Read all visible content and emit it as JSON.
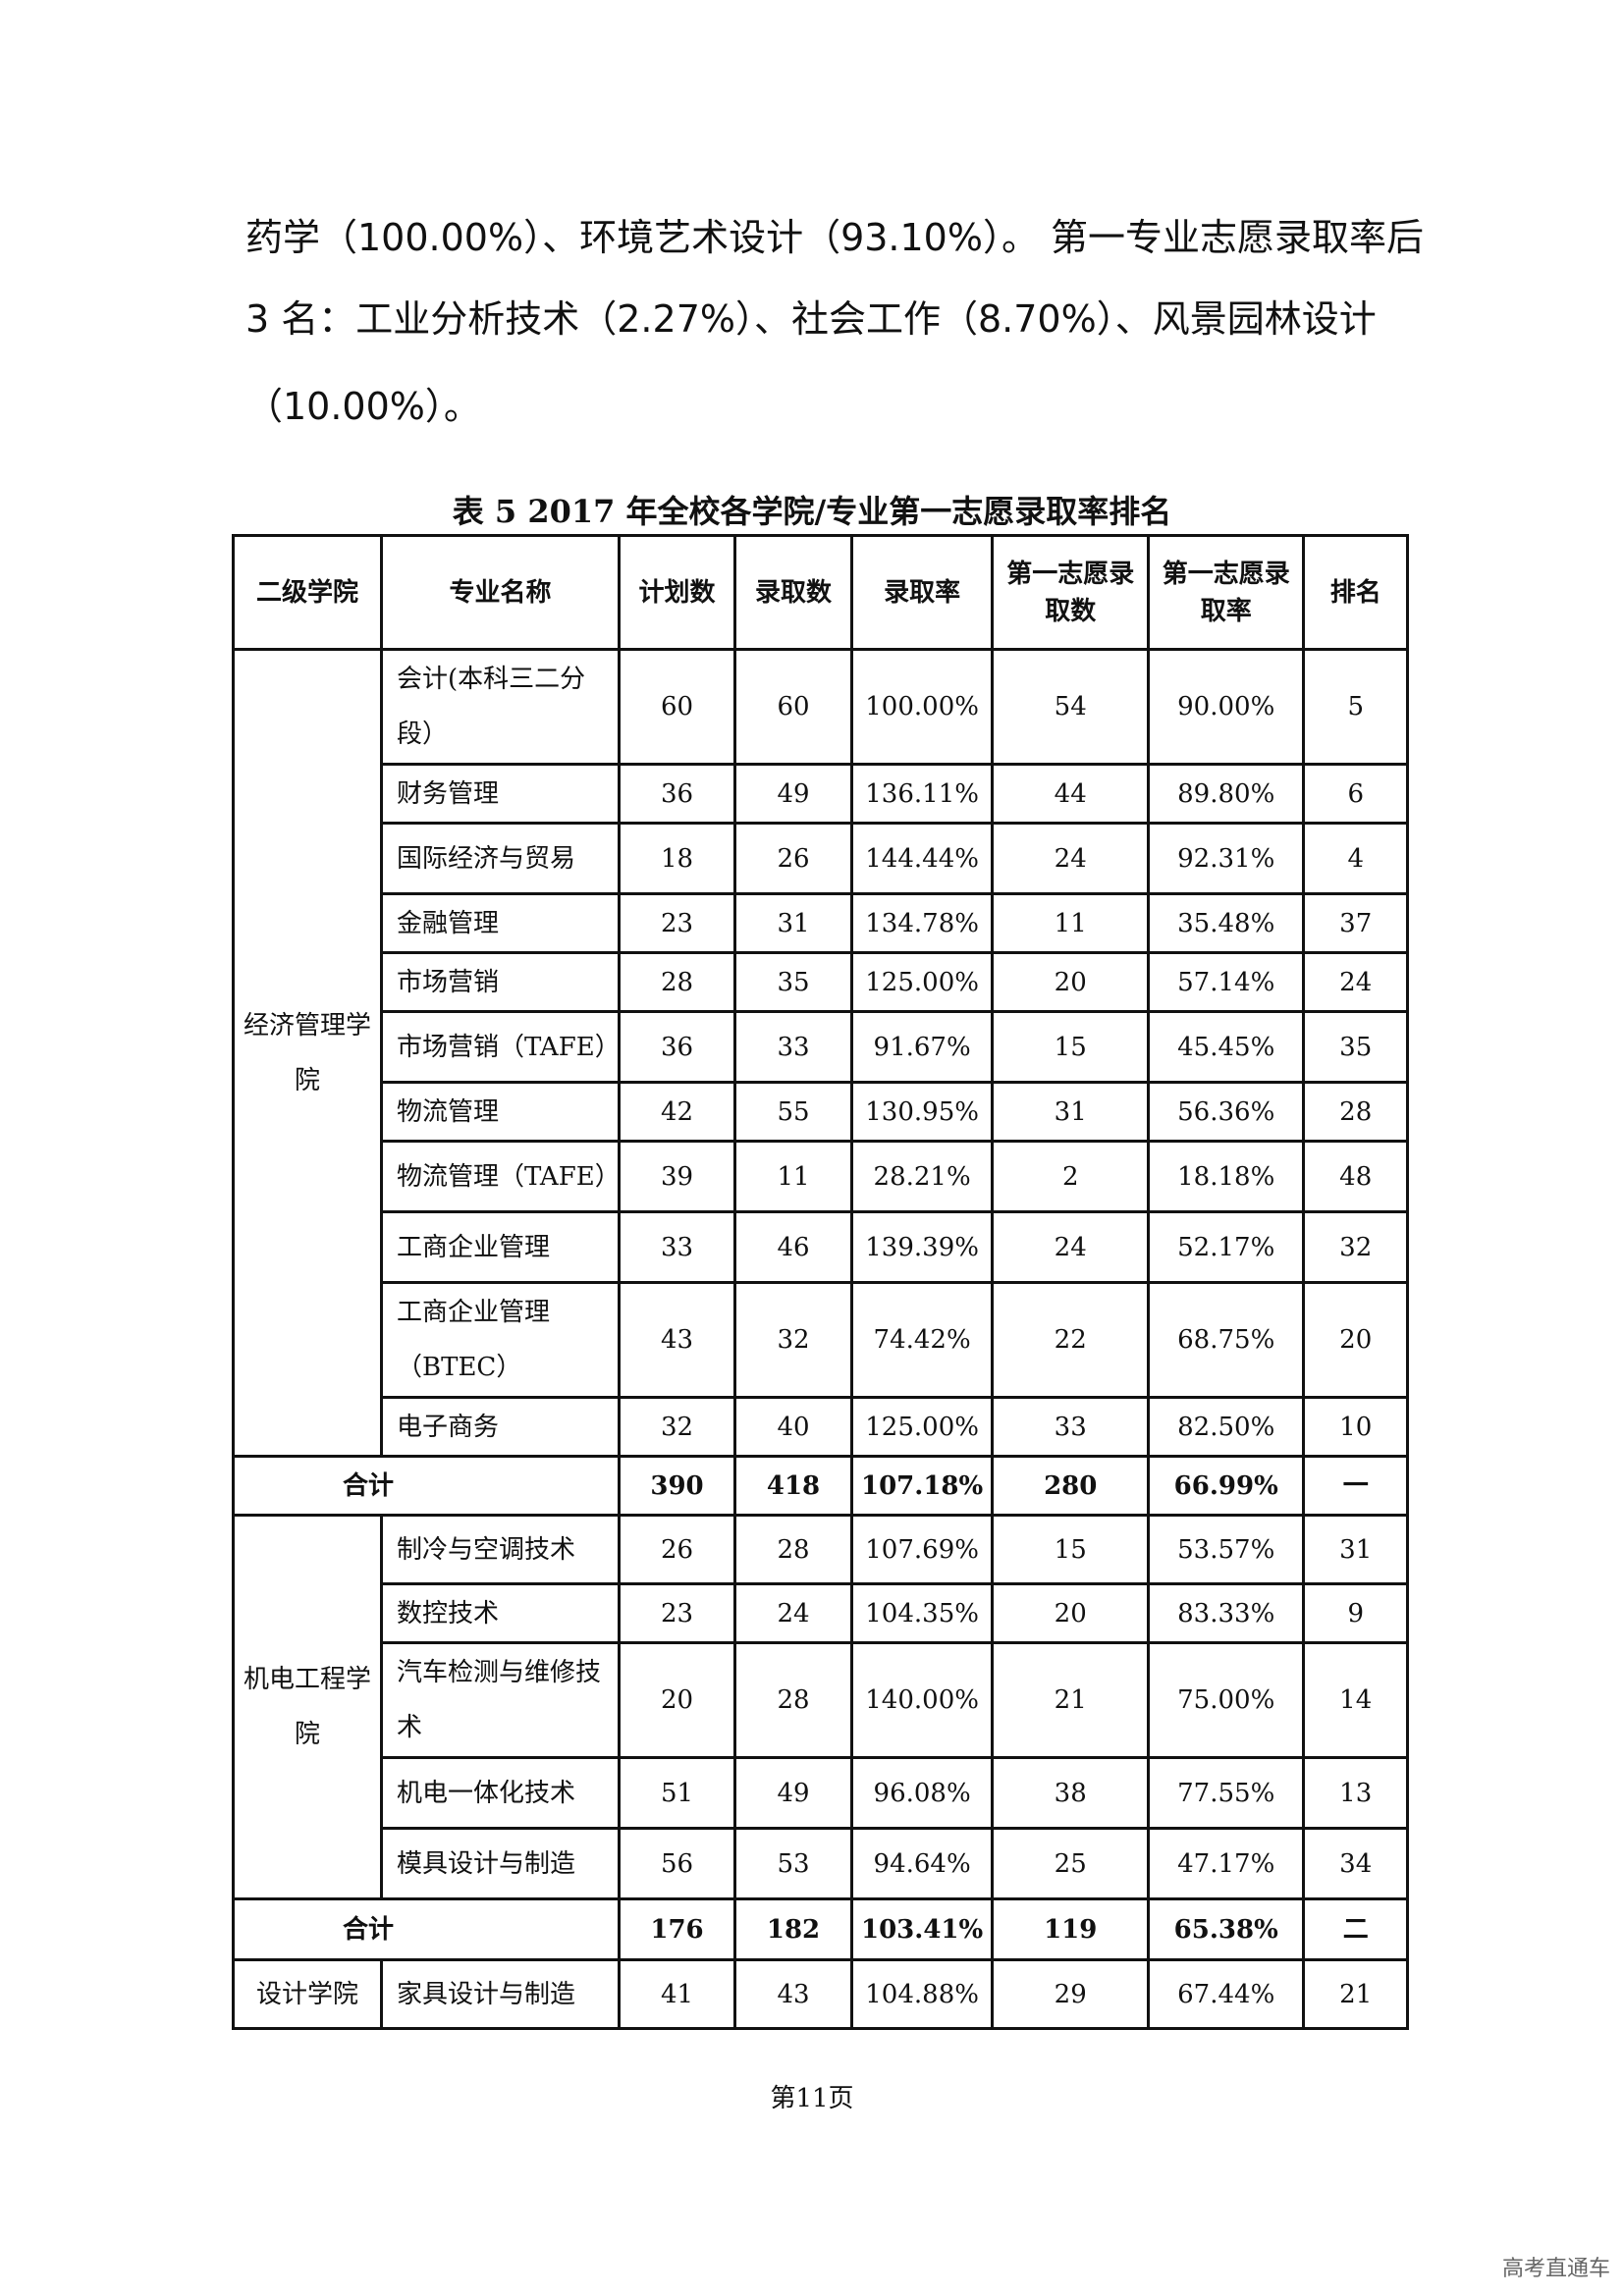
{
  "paragraph_lines": [
    "药学（100.00%）、环境艺术设计（93.10%）。 第一专业志愿录取率后",
    "3 名：工业分析技术（2.27%）、社会工作（8.70%）、风景园林设计",
    "（10.00%）。"
  ],
  "table_title": "表 5   2017 年全校各学院/专业第一志愿录取率排名",
  "headers": [
    "二级学院",
    "专业名称",
    "计划数",
    "录取数",
    "录取率",
    "第一志愿录取数",
    "第一志愿录取率",
    "排名"
  ],
  "groups": [
    {
      "college": "经济管理学院",
      "rows": [
        [
          "会计(本科三二分段）",
          "60",
          "60",
          "100.00%",
          "54",
          "90.00%",
          "5"
        ],
        [
          "财务管理",
          "36",
          "49",
          "136.11%",
          "44",
          "89.80%",
          "6"
        ],
        [
          "国际经济与贸易",
          "18",
          "26",
          "144.44%",
          "24",
          "92.31%",
          "4"
        ],
        [
          "金融管理",
          "23",
          "31",
          "134.78%",
          "11",
          "35.48%",
          "37"
        ],
        [
          "市场营销",
          "28",
          "35",
          "125.00%",
          "20",
          "57.14%",
          "24"
        ],
        [
          "市场营销（TAFE）",
          "36",
          "33",
          "91.67%",
          "15",
          "45.45%",
          "35"
        ],
        [
          "物流管理",
          "42",
          "55",
          "130.95%",
          "31",
          "56.36%",
          "28"
        ],
        [
          "物流管理（TAFE）",
          "39",
          "11",
          "28.21%",
          "2",
          "18.18%",
          "48"
        ],
        [
          "工商企业管理",
          "33",
          "46",
          "139.39%",
          "24",
          "52.17%",
          "32"
        ],
        [
          "工商企业管理（BTEC）",
          "43",
          "32",
          "74.42%",
          "22",
          "68.75%",
          "20"
        ],
        [
          "电子商务",
          "32",
          "40",
          "125.00%",
          "33",
          "82.50%",
          "10"
        ]
      ],
      "total": [
        "合计",
        "390",
        "418",
        "107.18%",
        "280",
        "66.99%",
        "一"
      ]
    },
    {
      "college": "机电工程学院",
      "rows": [
        [
          "制冷与空调技术",
          "26",
          "28",
          "107.69%",
          "15",
          "53.57%",
          "31"
        ],
        [
          "数控技术",
          "23",
          "24",
          "104.35%",
          "20",
          "83.33%",
          "9"
        ],
        [
          "汽车检测与维修技术",
          "20",
          "28",
          "140.00%",
          "21",
          "75.00%",
          "14"
        ],
        [
          "机电一体化技术",
          "51",
          "49",
          "96.08%",
          "38",
          "77.55%",
          "13"
        ],
        [
          "模具设计与制造",
          "56",
          "53",
          "94.64%",
          "25",
          "47.17%",
          "34"
        ]
      ],
      "total": [
        "合计",
        "176",
        "182",
        "103.41%",
        "119",
        "65.38%",
        "二"
      ]
    },
    {
      "college": "设计学院",
      "rows": [
        [
          "家具设计与制造",
          "41",
          "43",
          "104.88%",
          "29",
          "67.44%",
          "21"
        ]
      ]
    }
  ],
  "footer": "第11页",
  "watermark": "高考直通车"
}
